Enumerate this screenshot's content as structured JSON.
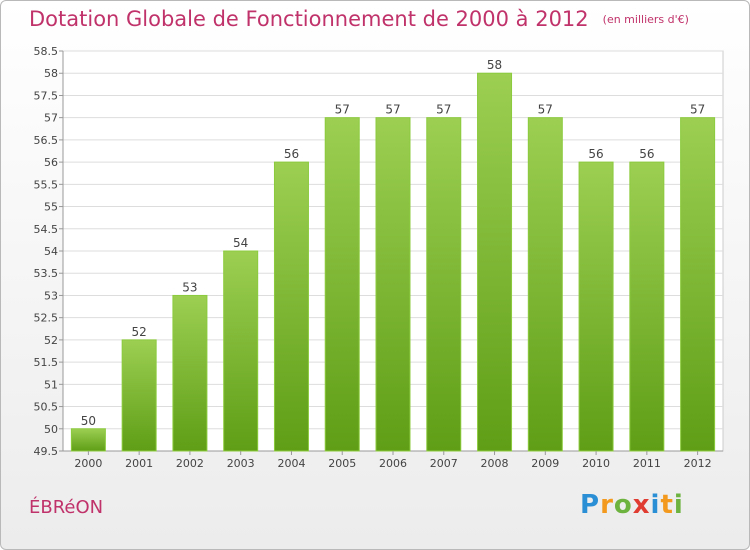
{
  "chart_data": {
    "type": "bar",
    "title": "Dotation Globale de Fonctionnement de 2000 à 2012",
    "unit_note": "(en milliers d'€)",
    "categories": [
      "2000",
      "2001",
      "2002",
      "2003",
      "2004",
      "2005",
      "2006",
      "2007",
      "2008",
      "2009",
      "2010",
      "2011",
      "2012"
    ],
    "values": [
      50,
      52,
      53,
      54,
      56,
      57,
      57,
      57,
      58,
      57,
      56,
      56,
      57
    ],
    "ylim": [
      49.5,
      58.5
    ],
    "yticks": [
      "49.5",
      "50",
      "50.5",
      "51",
      "51.5",
      "52",
      "52.5",
      "53",
      "53.5",
      "54",
      "54.5",
      "55",
      "55.5",
      "56",
      "56.5",
      "57",
      "57.5",
      "58",
      "58.5"
    ],
    "grid": "horizontal",
    "bar_color": "#7cbf2e"
  },
  "place_name": "ÉBRéON",
  "logo": {
    "letters": [
      "P",
      "r",
      "o",
      "x",
      "i",
      "t",
      "i"
    ],
    "colors": [
      "#2b8fd6",
      "#f39a1e",
      "#6db33f",
      "#e03c31",
      "#2b8fd6",
      "#f39a1e",
      "#6db33f"
    ]
  }
}
